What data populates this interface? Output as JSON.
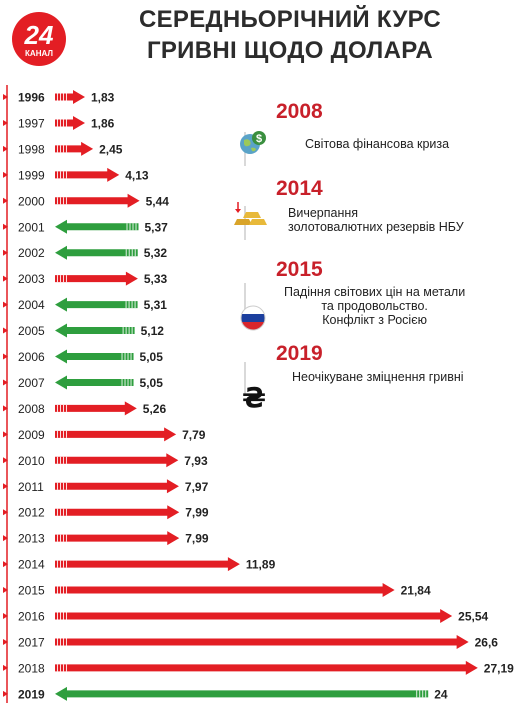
{
  "logo": {
    "number": "24",
    "name": "КАНАЛ",
    "color": "#e31e24"
  },
  "title": {
    "line1": "СЕРЕДНЬОРІЧНИЙ КУРС",
    "line2": "ГРИВНІ ЩОДО ДОЛАРА"
  },
  "colors": {
    "up": "#e31e24",
    "down": "#2e9e3e",
    "accent": "#c8202a"
  },
  "chart_data": {
    "type": "bar",
    "categories": [
      "1996",
      "1997",
      "1998",
      "1999",
      "2000",
      "2001",
      "2002",
      "2003",
      "2004",
      "2005",
      "2006",
      "2007",
      "2008",
      "2009",
      "2010",
      "2011",
      "2012",
      "2013",
      "2014",
      "2015",
      "2016",
      "2017",
      "2018",
      "2019"
    ],
    "values": [
      1.83,
      1.86,
      2.45,
      4.13,
      5.44,
      5.37,
      5.32,
      5.33,
      5.31,
      5.12,
      5.05,
      5.05,
      5.26,
      7.79,
      7.93,
      7.97,
      7.99,
      7.99,
      11.89,
      21.84,
      25.54,
      26.6,
      27.19,
      24
    ],
    "value_labels": [
      "1,83",
      "1,86",
      "2,45",
      "4,13",
      "5,44",
      "5,37",
      "5,32",
      "5,33",
      "5,31",
      "5,12",
      "5,05",
      "5,05",
      "5,26",
      "7,79",
      "7,93",
      "7,97",
      "7,99",
      "7,99",
      "11,89",
      "21,84",
      "25,54",
      "26,6",
      "27,19",
      "24"
    ],
    "direction": [
      "up",
      "up",
      "up",
      "up",
      "up",
      "down",
      "down",
      "up",
      "down",
      "down",
      "down",
      "down",
      "up",
      "up",
      "up",
      "up",
      "up",
      "up",
      "up",
      "up",
      "up",
      "up",
      "up",
      "down"
    ],
    "bold_categories": [
      "1996",
      "2019"
    ]
  },
  "events": [
    {
      "year": "2008",
      "text": [
        "Світова фінансова криза"
      ],
      "icon": "globe-dollar-icon"
    },
    {
      "year": "2014",
      "text": [
        "Вичерпання",
        "золотовалютних резервів НБУ"
      ],
      "icon": "gold-bars-icon"
    },
    {
      "year": "2015",
      "text": [
        "Падіння світових цін на метали",
        "та продовольство.",
        "Конфлікт з Росією"
      ],
      "icon": "russia-flag-icon"
    },
    {
      "year": "2019",
      "text": [
        "Неочікуване зміцнення гривні"
      ],
      "icon": "hryvnia-sign-icon"
    }
  ],
  "hryvnia_symbol": "₴"
}
